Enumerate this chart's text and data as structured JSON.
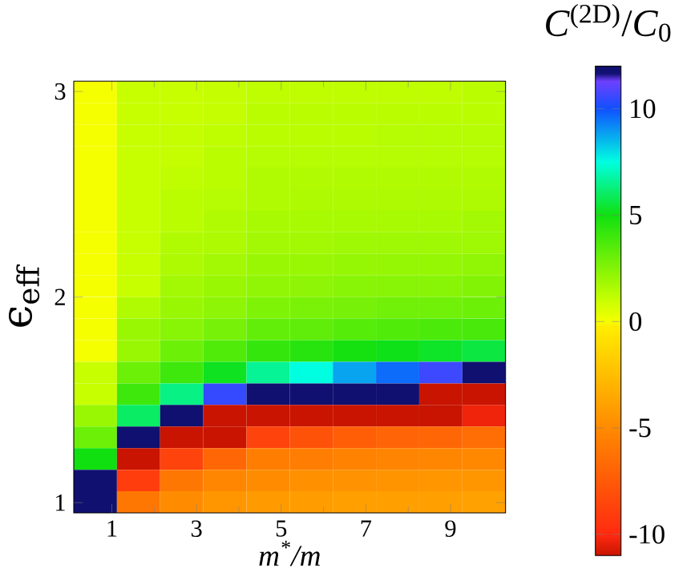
{
  "chart_data": {
    "type": "heatmap",
    "xlabel": "m$^{*}$/m",
    "ylabel": "ϵ$_{eff}$",
    "clabel": "*C*$^{(2D)}$/*C*$_{0}$",
    "x": [
      0.61,
      1.63,
      2.65,
      3.67,
      4.69,
      5.71,
      6.73,
      7.75,
      8.77,
      9.79
    ],
    "y": [
      2.9975,
      2.8925,
      2.7875,
      2.6825,
      2.5775,
      2.4725,
      2.3675,
      2.2625,
      2.1575,
      2.0525,
      1.9475,
      1.8425,
      1.7375,
      1.6325,
      1.5275,
      1.4225,
      1.3175,
      1.2125,
      1.1075,
      1.0025
    ],
    "xlim": [
      0.1,
      10.3
    ],
    "ylim": [
      0.95,
      3.05
    ],
    "xticks": [
      1,
      3,
      5,
      7,
      9
    ],
    "yticks": [
      1,
      2,
      3
    ],
    "clim": [
      -11,
      12
    ],
    "cticks": [
      -10,
      -5,
      0,
      5,
      10
    ],
    "cells": [
      [
        0,
        1,
        1,
        1.1,
        1.2,
        1.2,
        1.2,
        1.2,
        1.2,
        1.3
      ],
      [
        0,
        1,
        1,
        1.1,
        1.3,
        1.3,
        1.3,
        1.3,
        1.3,
        1.3
      ],
      [
        0,
        1,
        1.1,
        1.2,
        1.3,
        1.3,
        1.3,
        1.4,
        1.4,
        1.4
      ],
      [
        0,
        1,
        1.1,
        1.3,
        1.4,
        1.4,
        1.4,
        1.4,
        1.4,
        1.4
      ],
      [
        0,
        1,
        1.2,
        1.3,
        1.5,
        1.5,
        1.5,
        1.5,
        1.5,
        1.5
      ],
      [
        0,
        1,
        1.3,
        1.4,
        1.5,
        1.6,
        1.6,
        1.6,
        1.6,
        1.6
      ],
      [
        0,
        1,
        1.3,
        1.5,
        1.7,
        1.7,
        1.7,
        1.7,
        1.7,
        1.8
      ],
      [
        0,
        1,
        1.5,
        1.6,
        1.8,
        1.8,
        1.9,
        1.9,
        1.9,
        1.9
      ],
      [
        0,
        1,
        1.6,
        1.8,
        2.0,
        2.0,
        2.1,
        2.1,
        2.1,
        2.2
      ],
      [
        0,
        1,
        1.8,
        2.0,
        2.2,
        2.3,
        2.4,
        2.4,
        2.4,
        2.5
      ],
      [
        0,
        1.5,
        2.0,
        2.3,
        2.6,
        2.7,
        2.8,
        2.9,
        2.9,
        3.0
      ],
      [
        0,
        2,
        2.4,
        2.8,
        3.2,
        3.3,
        3.5,
        3.6,
        3.7,
        3.8
      ],
      [
        0,
        2,
        3.0,
        3.6,
        4.2,
        4.5,
        4.9,
        5.1,
        5.3,
        5.6
      ],
      [
        1,
        3,
        4.0,
        5.2,
        6.6,
        7.5,
        8.8,
        9.6,
        10.6,
        11.9
      ],
      [
        1,
        4,
        6.4,
        10.5,
        12,
        12,
        12,
        12,
        -11,
        -11
      ],
      [
        2,
        6,
        12,
        -11,
        -11,
        -11,
        -11,
        -11,
        -11,
        -10.3
      ],
      [
        3,
        12,
        -11,
        -11,
        -8.7,
        -7.9,
        -7.3,
        -7,
        -6.8,
        -6.5
      ],
      [
        5,
        -11,
        -8.7,
        -6.8,
        -5.6,
        -5.7,
        -5.4,
        -5.3,
        -5.2,
        -5.1
      ],
      [
        12,
        -9,
        -6,
        -5.2,
        -4.9,
        -4.7,
        -4.6,
        -4.5,
        -4.4,
        -4.4
      ],
      [
        12,
        -6,
        -4.9,
        -4.4,
        -4.2,
        -4.1,
        -4.0,
        -4.0,
        -4.0,
        -3.9
      ]
    ]
  }
}
